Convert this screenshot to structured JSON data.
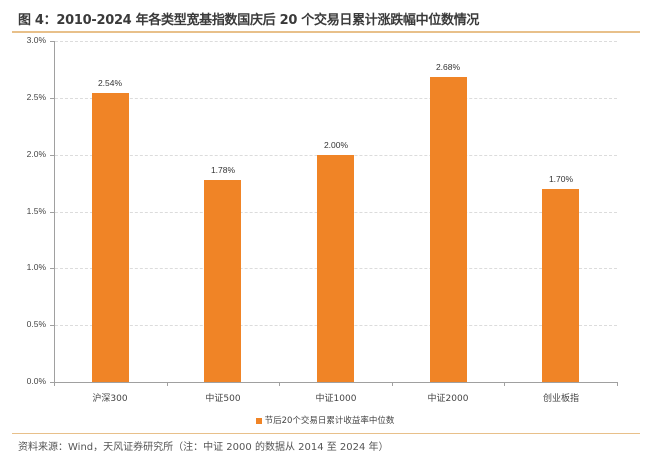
{
  "header": {
    "title": "图 4：2010-2024 年各类型宽基指数国庆后 20 个交易日累计涨跌幅中位数情况"
  },
  "footer": {
    "source": "资料来源：Wind，天风证券研究所（注：中证 2000 的数据从 2014 至 2024 年）"
  },
  "colors": {
    "bar": "#f08426",
    "title_rule": "#e8c08a",
    "axis": "#a0a0a0",
    "grid": "#dcdcdc"
  },
  "chart_data": {
    "type": "bar",
    "title": "图 4：2010-2024 年各类型宽基指数国庆后 20 个交易日累计涨跌幅中位数情况",
    "categories": [
      "沪深300",
      "中证500",
      "中证1000",
      "中证2000",
      "创业板指"
    ],
    "series": [
      {
        "name": "节后20个交易日累计收益率中位数",
        "values": [
          2.54,
          1.78,
          2.0,
          2.68,
          1.7
        ]
      }
    ],
    "value_labels": [
      "2.54%",
      "1.78%",
      "2.00%",
      "2.68%",
      "1.70%"
    ],
    "xlabel": "",
    "ylabel": "",
    "ylim": [
      0,
      3.0
    ],
    "yticks": [
      "0.0%",
      "0.5%",
      "1.0%",
      "1.5%",
      "2.0%",
      "2.5%",
      "3.0%"
    ],
    "grid": true,
    "legend_position": "bottom"
  }
}
